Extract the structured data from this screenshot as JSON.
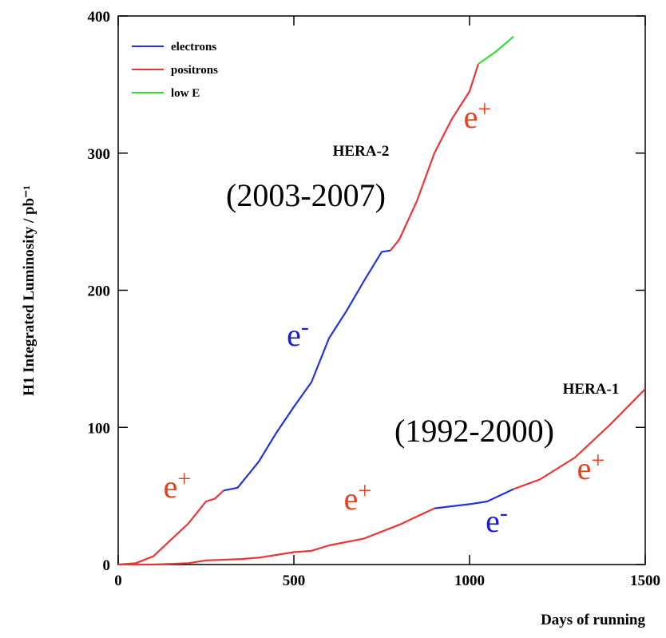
{
  "chart_data": {
    "type": "line",
    "x_label": "Days of running",
    "y_label": "H1 Integrated Luminosity / pb⁻¹",
    "xlim": [
      0,
      1500
    ],
    "xticks": [
      0,
      500,
      1000,
      1500
    ],
    "ylim": [
      0,
      400
    ],
    "yticks": [
      0,
      100,
      200,
      300,
      400
    ],
    "legend": "upper left",
    "series": [
      {
        "name": "electrons",
        "color": "#2233dd",
        "x": [
          300,
          340,
          400,
          450,
          500,
          550,
          600,
          650,
          700,
          750,
          775,
          null,
          900,
          1000,
          1050,
          1100,
          1125
        ],
        "values": [
          54,
          56,
          75,
          96,
          115,
          133,
          165,
          185,
          207,
          228,
          229,
          null,
          41,
          44,
          46,
          52,
          55
        ]
      },
      {
        "name": "positrons",
        "color": "#ee3333",
        "x": [
          0,
          50,
          100,
          150,
          200,
          250,
          275,
          300,
          null,
          775,
          800,
          850,
          900,
          950,
          1000,
          1025,
          null,
          0,
          100,
          200,
          250,
          350,
          400,
          500,
          550,
          600,
          700,
          800,
          900,
          null,
          1125,
          1200,
          1300,
          1400,
          1500
        ],
        "values": [
          0,
          1,
          6,
          18,
          30,
          46,
          48,
          54,
          null,
          229,
          237,
          265,
          300,
          325,
          345,
          365,
          null,
          0,
          0,
          1,
          3,
          4,
          5,
          9,
          10,
          14,
          19,
          29,
          41,
          null,
          55,
          62,
          78,
          102,
          128
        ]
      },
      {
        "name": "low E",
        "color": "#33dd33",
        "x": [
          1025,
          1075,
          1125
        ],
        "values": [
          365,
          374,
          385
        ]
      }
    ],
    "annotations": [
      {
        "text": "HERA-2"
      },
      {
        "text": "(2003-2007)"
      },
      {
        "text": "HERA-1"
      },
      {
        "text": "(1992-2000)"
      },
      {
        "text": "e",
        "sup": "+",
        "color": "#e8401c"
      },
      {
        "text": "e",
        "sup": "-",
        "color": "#1a1adb"
      },
      {
        "text": "e",
        "sup": "+",
        "color": "#e8401c"
      },
      {
        "text": "e",
        "sup": "+",
        "color": "#e8401c"
      },
      {
        "text": "e",
        "sup": "-",
        "color": "#1a1adb"
      },
      {
        "text": "e",
        "sup": "+",
        "color": "#e8401c"
      }
    ]
  }
}
